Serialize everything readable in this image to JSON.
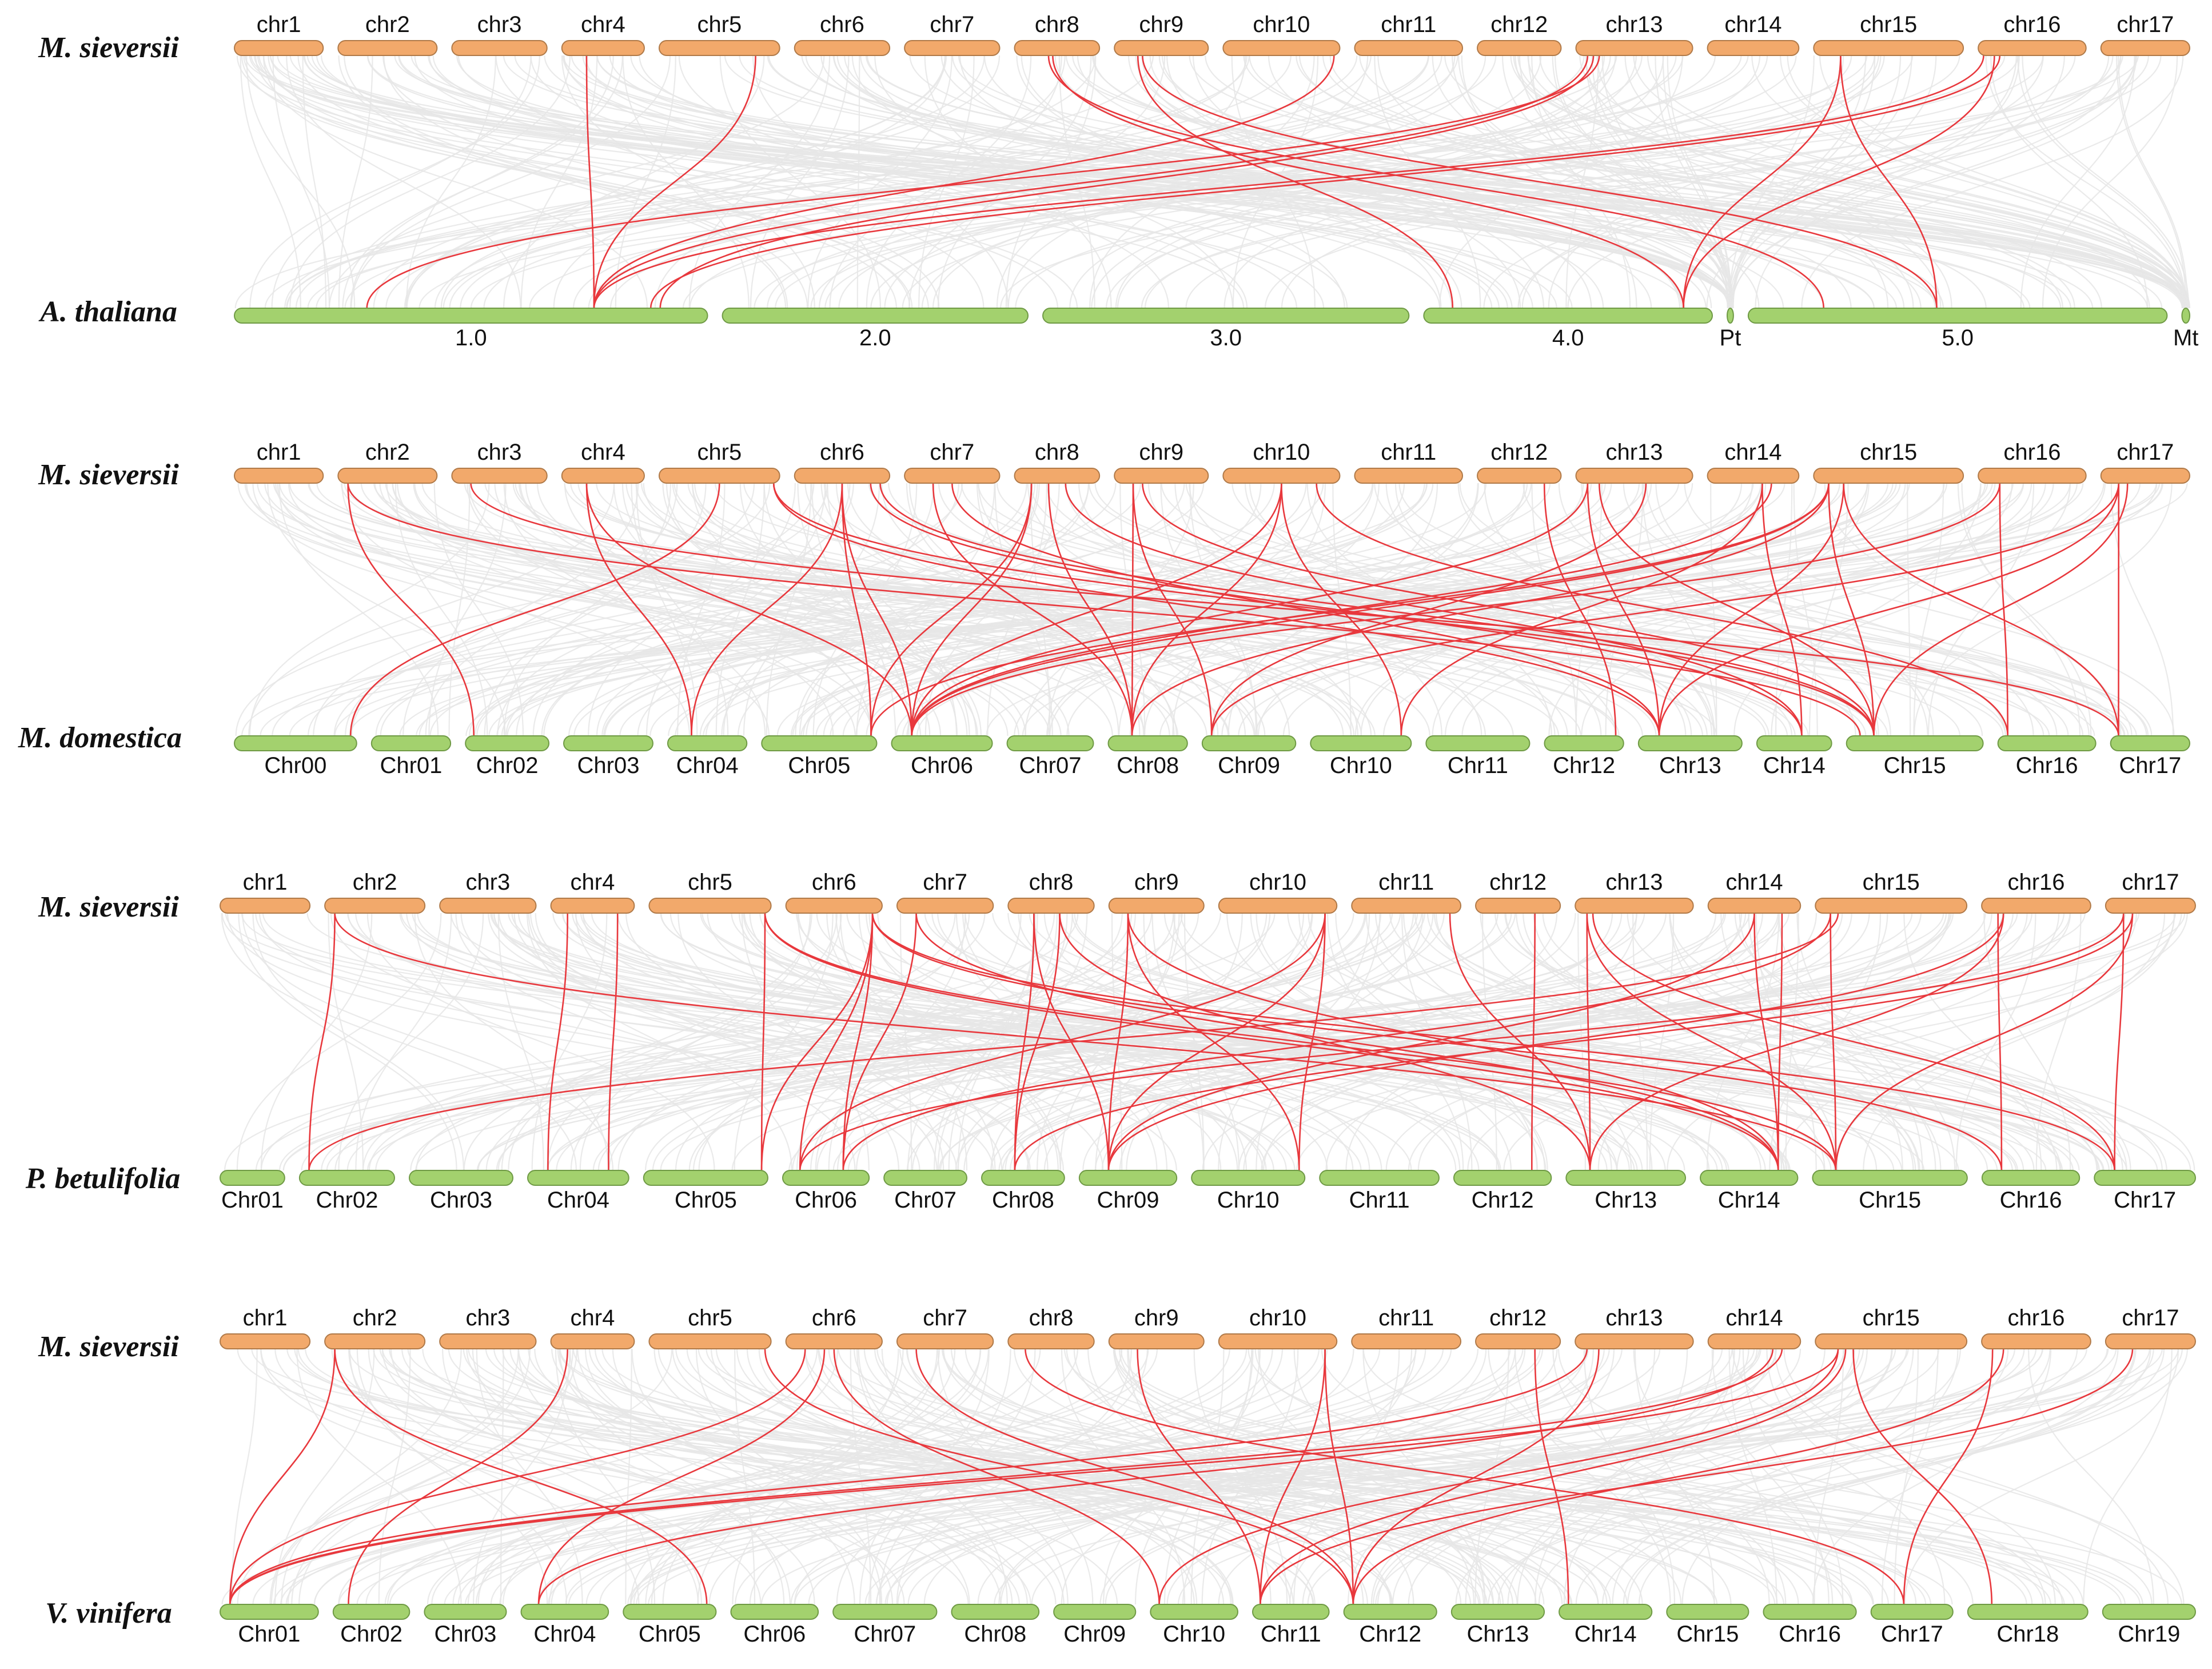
{
  "colors": {
    "query": "#f2a96b",
    "query_stroke": "#b07a49",
    "target": "#a3d16e",
    "target_stroke": "#6f9a45",
    "background_links": "#e6e6e6",
    "highlight_links": "#e8383d"
  },
  "query_chromosomes": [
    {
      "label": "chr1",
      "size": 0.7
    },
    {
      "label": "chr2",
      "size": 0.78
    },
    {
      "label": "chr3",
      "size": 0.75
    },
    {
      "label": "chr4",
      "size": 0.65
    },
    {
      "label": "chr5",
      "size": 0.95
    },
    {
      "label": "chr6",
      "size": 0.75
    },
    {
      "label": "chr7",
      "size": 0.75
    },
    {
      "label": "chr8",
      "size": 0.67
    },
    {
      "label": "chr9",
      "size": 0.74
    },
    {
      "label": "chr10",
      "size": 0.92
    },
    {
      "label": "chr11",
      "size": 0.85
    },
    {
      "label": "chr12",
      "size": 0.66
    },
    {
      "label": "chr13",
      "size": 0.92
    },
    {
      "label": "chr14",
      "size": 0.72
    },
    {
      "label": "chr15",
      "size": 1.18
    },
    {
      "label": "chr16",
      "size": 0.85
    },
    {
      "label": "chr17",
      "size": 0.7
    }
  ],
  "panels": [
    {
      "query_species": "M. sieversii",
      "target_species": "A. thaliana",
      "targets": [
        {
          "label": "1.0",
          "size": 3.05
        },
        {
          "label": "2.0",
          "size": 1.97
        },
        {
          "label": "3.0",
          "size": 2.36
        },
        {
          "label": "4.0",
          "size": 1.86
        },
        {
          "label": "Pt",
          "size": 0.04
        },
        {
          "label": "5.0",
          "size": 2.7
        },
        {
          "label": "Mt",
          "size": 0.05
        }
      ],
      "links": [
        [
          3,
          0.3,
          0,
          0.76
        ],
        [
          4,
          0.8,
          0,
          0.76
        ],
        [
          12,
          0.2,
          0,
          0.28
        ],
        [
          12,
          0.1,
          0,
          0.76
        ],
        [
          15,
          0.05,
          0,
          0.76
        ],
        [
          15,
          0.2,
          0,
          0.88
        ],
        [
          9,
          0.95,
          0,
          0.76
        ],
        [
          7,
          0.45,
          3,
          0.9
        ],
        [
          7,
          0.4,
          5,
          0.18
        ],
        [
          8,
          0.25,
          3,
          0.1
        ],
        [
          8,
          0.3,
          5,
          0.45
        ],
        [
          14,
          0.18,
          3,
          0.9
        ],
        [
          14,
          0.18,
          5,
          0.45
        ],
        [
          15,
          0.15,
          3,
          0.9
        ],
        [
          12,
          0.15,
          0,
          0.9
        ]
      ]
    },
    {
      "query_species": "M. sieversii",
      "target_species": "M. domestica",
      "targets": [
        {
          "label": "Chr00",
          "size": 0.85
        },
        {
          "label": "Chr01",
          "size": 0.55
        },
        {
          "label": "Chr02",
          "size": 0.58
        },
        {
          "label": "Chr03",
          "size": 0.62
        },
        {
          "label": "Chr04",
          "size": 0.55
        },
        {
          "label": "Chr05",
          "size": 0.8
        },
        {
          "label": "Chr06",
          "size": 0.7
        },
        {
          "label": "Chr07",
          "size": 0.6
        },
        {
          "label": "Chr08",
          "size": 0.55
        },
        {
          "label": "Chr09",
          "size": 0.65
        },
        {
          "label": "Chr10",
          "size": 0.7
        },
        {
          "label": "Chr11",
          "size": 0.72
        },
        {
          "label": "Chr12",
          "size": 0.55
        },
        {
          "label": "Chr13",
          "size": 0.72
        },
        {
          "label": "Chr14",
          "size": 0.52
        },
        {
          "label": "Chr15",
          "size": 0.95
        },
        {
          "label": "Chr16",
          "size": 0.68
        },
        {
          "label": "Chr17",
          "size": 0.55
        }
      ],
      "links": [
        [
          1,
          0.1,
          2,
          0.1
        ],
        [
          1,
          0.1,
          15,
          0.1
        ],
        [
          3,
          0.3,
          4,
          0.3
        ],
        [
          3,
          0.3,
          6,
          0.2
        ],
        [
          4,
          0.95,
          13,
          0.2
        ],
        [
          4,
          0.95,
          15,
          0.2
        ],
        [
          5,
          0.5,
          4,
          0.3
        ],
        [
          5,
          0.5,
          5,
          0.95
        ],
        [
          5,
          0.5,
          6,
          0.2
        ],
        [
          5,
          0.8,
          14,
          0.6
        ],
        [
          5,
          0.9,
          15,
          0.2
        ],
        [
          6,
          0.3,
          8,
          0.3
        ],
        [
          6,
          0.5,
          13,
          0.2
        ],
        [
          7,
          0.2,
          5,
          0.95
        ],
        [
          7,
          0.2,
          6,
          0.2
        ],
        [
          7,
          0.4,
          8,
          0.3
        ],
        [
          7,
          0.6,
          14,
          0.6
        ],
        [
          8,
          0.2,
          8,
          0.3
        ],
        [
          8,
          0.2,
          9,
          0.1
        ],
        [
          8,
          0.3,
          15,
          0.2
        ],
        [
          9,
          0.5,
          6,
          0.2
        ],
        [
          9,
          0.5,
          8,
          0.3
        ],
        [
          9,
          0.5,
          10,
          0.9
        ],
        [
          9,
          0.8,
          16,
          0.1
        ],
        [
          11,
          0.8,
          12,
          0.9
        ],
        [
          12,
          0.1,
          6,
          0.2
        ],
        [
          12,
          0.1,
          13,
          0.2
        ],
        [
          12,
          0.2,
          15,
          0.2
        ],
        [
          12,
          0.6,
          9,
          0.1
        ],
        [
          13,
          0.6,
          10,
          0.9
        ],
        [
          13,
          0.6,
          14,
          0.6
        ],
        [
          13,
          0.7,
          6,
          0.2
        ],
        [
          14,
          0.1,
          5,
          0.95
        ],
        [
          14,
          0.1,
          6,
          0.2
        ],
        [
          14,
          0.1,
          8,
          0.3
        ],
        [
          14,
          0.1,
          15,
          0.2
        ],
        [
          14,
          0.2,
          13,
          0.2
        ],
        [
          14,
          0.2,
          17,
          0.1
        ],
        [
          15,
          0.2,
          16,
          0.1
        ],
        [
          15,
          0.2,
          6,
          0.2
        ],
        [
          16,
          0.2,
          17,
          0.1
        ],
        [
          16,
          0.2,
          9,
          0.1
        ],
        [
          16,
          0.2,
          13,
          0.2
        ],
        [
          16,
          0.3,
          15,
          0.2
        ],
        [
          4,
          0.5,
          0,
          0.95
        ],
        [
          2,
          0.2,
          17,
          0.1
        ]
      ]
    },
    {
      "query_species": "M. sieversii",
      "target_species": "P. betulifolia",
      "targets": [
        {
          "label": "Chr01",
          "size": 0.53
        },
        {
          "label": "Chr02",
          "size": 0.78
        },
        {
          "label": "Chr03",
          "size": 0.85
        },
        {
          "label": "Chr04",
          "size": 0.83
        },
        {
          "label": "Chr05",
          "size": 1.02
        },
        {
          "label": "Chr06",
          "size": 0.71
        },
        {
          "label": "Chr07",
          "size": 0.68
        },
        {
          "label": "Chr08",
          "size": 0.68
        },
        {
          "label": "Chr09",
          "size": 0.8
        },
        {
          "label": "Chr10",
          "size": 0.93
        },
        {
          "label": "Chr11",
          "size": 0.98
        },
        {
          "label": "Chr12",
          "size": 0.8
        },
        {
          "label": "Chr13",
          "size": 0.98
        },
        {
          "label": "Chr14",
          "size": 0.8
        },
        {
          "label": "Chr15",
          "size": 1.27
        },
        {
          "label": "Chr16",
          "size": 0.8
        },
        {
          "label": "Chr17",
          "size": 0.83
        }
      ],
      "links": [
        [
          1,
          0.1,
          1,
          0.1
        ],
        [
          1,
          0.1,
          14,
          0.15
        ],
        [
          3,
          0.2,
          3,
          0.2
        ],
        [
          3,
          0.8,
          3,
          0.8
        ],
        [
          4,
          0.95,
          4,
          0.95
        ],
        [
          4,
          0.95,
          13,
          0.8
        ],
        [
          4,
          0.95,
          14,
          0.15
        ],
        [
          5,
          0.9,
          4,
          0.95
        ],
        [
          5,
          0.9,
          5,
          0.2
        ],
        [
          5,
          0.9,
          5,
          0.7
        ],
        [
          5,
          0.9,
          15,
          0.2
        ],
        [
          5,
          0.9,
          16,
          0.2
        ],
        [
          6,
          0.2,
          5,
          0.7
        ],
        [
          6,
          0.2,
          13,
          0.8
        ],
        [
          7,
          0.3,
          7,
          0.4
        ],
        [
          7,
          0.6,
          7,
          0.4
        ],
        [
          7,
          0.3,
          8,
          0.3
        ],
        [
          7,
          0.6,
          12,
          0.2
        ],
        [
          8,
          0.2,
          8,
          0.3
        ],
        [
          8,
          0.2,
          9,
          0.95
        ],
        [
          8,
          0.2,
          13,
          0.8
        ],
        [
          9,
          0.9,
          5,
          0.2
        ],
        [
          9,
          0.9,
          8,
          0.3
        ],
        [
          9,
          0.9,
          9,
          0.95
        ],
        [
          10,
          0.9,
          12,
          0.2
        ],
        [
          11,
          0.7,
          11,
          0.8
        ],
        [
          12,
          0.1,
          12,
          0.2
        ],
        [
          12,
          0.1,
          14,
          0.15
        ],
        [
          12,
          0.15,
          16,
          0.2
        ],
        [
          13,
          0.5,
          8,
          0.3
        ],
        [
          13,
          0.5,
          13,
          0.8
        ],
        [
          13,
          0.8,
          13,
          0.8
        ],
        [
          14,
          0.1,
          5,
          0.7
        ],
        [
          14,
          0.1,
          14,
          0.15
        ],
        [
          14,
          0.15,
          1,
          0.1
        ],
        [
          15,
          0.15,
          15,
          0.2
        ],
        [
          15,
          0.2,
          8,
          0.3
        ],
        [
          15,
          0.2,
          12,
          0.2
        ],
        [
          16,
          0.2,
          16,
          0.2
        ],
        [
          16,
          0.2,
          5,
          0.2
        ],
        [
          16,
          0.3,
          14,
          0.15
        ],
        [
          16,
          0.3,
          7,
          0.4
        ]
      ]
    },
    {
      "query_species": "M. sieversii",
      "target_species": "V. vinifera",
      "targets": [
        {
          "label": "Chr01",
          "size": 0.9
        },
        {
          "label": "Chr02",
          "size": 0.7
        },
        {
          "label": "Chr03",
          "size": 0.75
        },
        {
          "label": "Chr04",
          "size": 0.8
        },
        {
          "label": "Chr05",
          "size": 0.85
        },
        {
          "label": "Chr06",
          "size": 0.8
        },
        {
          "label": "Chr07",
          "size": 0.95
        },
        {
          "label": "Chr08",
          "size": 0.8
        },
        {
          "label": "Chr09",
          "size": 0.75
        },
        {
          "label": "Chr10",
          "size": 0.8
        },
        {
          "label": "Chr11",
          "size": 0.7
        },
        {
          "label": "Chr12",
          "size": 0.85
        },
        {
          "label": "Chr13",
          "size": 0.85
        },
        {
          "label": "Chr14",
          "size": 0.85
        },
        {
          "label": "Chr15",
          "size": 0.75
        },
        {
          "label": "Chr16",
          "size": 0.85
        },
        {
          "label": "Chr17",
          "size": 0.75
        },
        {
          "label": "Chr18",
          "size": 1.1
        },
        {
          "label": "Chr19",
          "size": 0.85
        }
      ],
      "links": [
        [
          1,
          0.1,
          0,
          0.1
        ],
        [
          1,
          0.1,
          4,
          0.9
        ],
        [
          3,
          0.2,
          1,
          0.2
        ],
        [
          4,
          0.95,
          11,
          0.1
        ],
        [
          5,
          0.2,
          0,
          0.1
        ],
        [
          5,
          0.4,
          3,
          0.2
        ],
        [
          5,
          0.5,
          9,
          0.1
        ],
        [
          7,
          0.2,
          16,
          0.4
        ],
        [
          8,
          0.3,
          10,
          0.1
        ],
        [
          9,
          0.9,
          10,
          0.1
        ],
        [
          9,
          0.9,
          11,
          0.1
        ],
        [
          11,
          0.7,
          13,
          0.1
        ],
        [
          12,
          0.1,
          0,
          0.1
        ],
        [
          12,
          0.2,
          11,
          0.1
        ],
        [
          13,
          0.7,
          3,
          0.2
        ],
        [
          13,
          0.8,
          0,
          0.1
        ],
        [
          14,
          0.15,
          0,
          0.1
        ],
        [
          14,
          0.15,
          9,
          0.1
        ],
        [
          14,
          0.2,
          10,
          0.1
        ],
        [
          14,
          0.25,
          17,
          0.2
        ],
        [
          15,
          0.1,
          16,
          0.4
        ],
        [
          15,
          0.2,
          11,
          0.1
        ],
        [
          16,
          0.3,
          10,
          0.1
        ],
        [
          6,
          0.2,
          11,
          0.1
        ]
      ]
    }
  ]
}
